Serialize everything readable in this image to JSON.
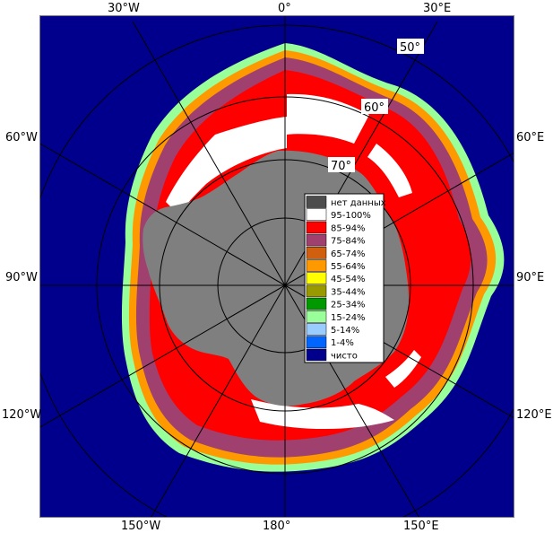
{
  "map": {
    "longitude_labels": {
      "top": [
        "30°W",
        "0°",
        "30°E"
      ],
      "bottom": [
        "150°W",
        "180°",
        "150°E"
      ],
      "left": [
        "60°W",
        "90°W",
        "120°W"
      ],
      "right": [
        "60°E",
        "90°E",
        "120°E"
      ]
    },
    "latitude_labels": [
      "50°",
      "60°",
      "70°"
    ],
    "colors": {
      "ocean": "#00008c",
      "land": "#7f7f7f",
      "no_data": "#4d4d4d",
      "frame": "#7f7f7f"
    }
  },
  "legend": {
    "items": [
      {
        "label": "нет данных",
        "color": "#4d4d4d"
      },
      {
        "label": "95-100%",
        "color": "#ffffff"
      },
      {
        "label": "85-94%",
        "color": "#ff0000"
      },
      {
        "label": "75-84%",
        "color": "#a0406e"
      },
      {
        "label": "65-74%",
        "color": "#d06010"
      },
      {
        "label": "55-64%",
        "color": "#ff9900"
      },
      {
        "label": "45-54%",
        "color": "#ffff00"
      },
      {
        "label": "35-44%",
        "color": "#999900"
      },
      {
        "label": "25-34%",
        "color": "#009900"
      },
      {
        "label": "15-24%",
        "color": "#99ff99"
      },
      {
        "label": "5-14%",
        "color": "#99ccff"
      },
      {
        "label": "1-4%",
        "color": "#0066ff"
      },
      {
        "label": "чисто",
        "color": "#00008c"
      }
    ]
  }
}
